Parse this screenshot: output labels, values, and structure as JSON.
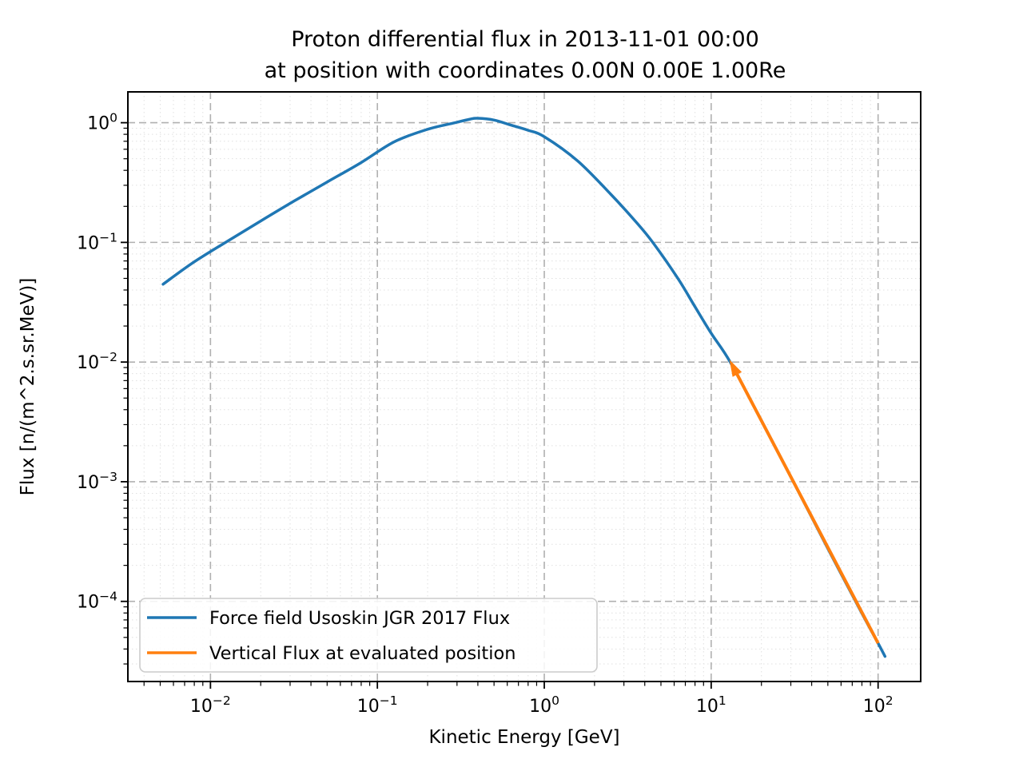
{
  "chart_data": {
    "type": "line",
    "title_line1": "Proton differential flux in 2013-11-01 00:00",
    "title_line2": "at position with coordinates 0.00N 0.00E 1.00Re",
    "xlabel": "Kinetic Energy [GeV]",
    "ylabel": "Flux [n/(m^2.s.sr.MeV)]",
    "x_scale": "log",
    "y_scale": "log",
    "xlim": [
      0.0032,
      180
    ],
    "ylim": [
      2.14e-05,
      1.81
    ],
    "x_tick_exponents": [
      -2,
      -1,
      0,
      1,
      2
    ],
    "y_tick_exponents": [
      0,
      -1,
      -2,
      -3,
      -4
    ],
    "grid": {
      "major": true,
      "major_style": "dashed",
      "major_color": "#b0b0b0",
      "minor": true,
      "minor_style": "dotted",
      "minor_color": "#e0e0e0"
    },
    "legend": {
      "position": "lower left",
      "entries": [
        {
          "label": "Force field Usoskin JGR 2017 Flux",
          "color": "#1f77b4"
        },
        {
          "label": "Vertical Flux at evaluated position",
          "color": "#ff7f0e"
        }
      ]
    },
    "series": [
      {
        "name": "Force field Usoskin JGR 2017 Flux",
        "color": "#1f77b4",
        "x": [
          0.0052,
          0.0079,
          0.0126,
          0.02,
          0.0316,
          0.0501,
          0.0794,
          0.126,
          0.2,
          0.282,
          0.355,
          0.398,
          0.501,
          0.631,
          0.794,
          1.0,
          1.585,
          2.512,
          3.548,
          4.467,
          6.31,
          7.94,
          10.0,
          13.0,
          20.0,
          31.6,
          50.1,
          79.4,
          100.0,
          110.0
        ],
        "y": [
          0.0447,
          0.068,
          0.102,
          0.151,
          0.221,
          0.32,
          0.462,
          0.692,
          0.881,
          0.989,
          1.067,
          1.089,
          1.052,
          0.955,
          0.867,
          0.764,
          0.479,
          0.251,
          0.148,
          0.1,
          0.0501,
          0.0295,
          0.0174,
          0.01,
          0.00324,
          0.000955,
          0.000275,
          8.1e-05,
          4.47e-05,
          3.47e-05
        ]
      },
      {
        "name": "Vertical Flux at evaluated position",
        "color": "#ff7f0e",
        "x": [
          13.0,
          100.0
        ],
        "y": [
          0.01,
          4.47e-05
        ],
        "arrow_at_start": true
      }
    ]
  }
}
